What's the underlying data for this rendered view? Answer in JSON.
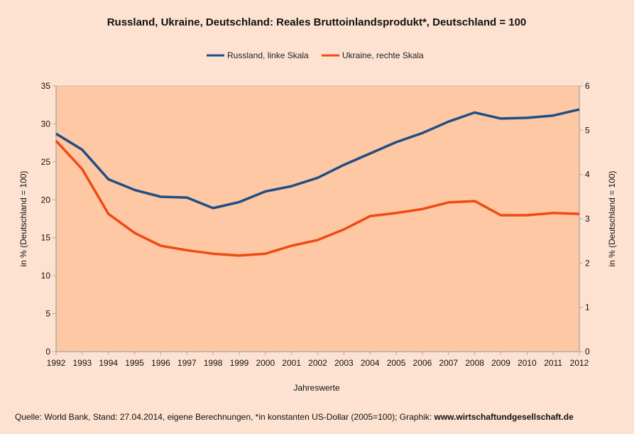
{
  "chart_data": {
    "type": "line",
    "title": "Russland, Ukraine, Deutschland: Reales Bruttoinlandsprodukt*, Deutschland = 100",
    "xlabel": "Jahreswerte",
    "ylabel_left": "in % (Deutschland = 100)",
    "ylabel_right": "in % (Deutschland = 100)",
    "x": [
      "1992",
      "1993",
      "1994",
      "1995",
      "1996",
      "1997",
      "1998",
      "1999",
      "2000",
      "2001",
      "2002",
      "2003",
      "2004",
      "2005",
      "2006",
      "2007",
      "2008",
      "2009",
      "2010",
      "2011",
      "2012"
    ],
    "y_left": {
      "min": 0,
      "max": 35,
      "step": 5,
      "ticks": [
        "0",
        "5",
        "10",
        "15",
        "20",
        "25",
        "30",
        "35"
      ]
    },
    "y_right": {
      "min": 0,
      "max": 6,
      "step": 1,
      "ticks": [
        "0",
        "1",
        "2",
        "3",
        "4",
        "5",
        "6"
      ]
    },
    "grid": false,
    "legend_position": "top-center",
    "series": [
      {
        "name": "Russland, linke Skala",
        "axis": "left",
        "color": "#1f4e85",
        "values": [
          28.7,
          26.6,
          22.7,
          21.3,
          20.4,
          20.3,
          18.9,
          19.7,
          21.1,
          21.8,
          22.9,
          24.6,
          26.1,
          27.6,
          28.8,
          30.3,
          31.5,
          30.7,
          30.8,
          31.1,
          31.9
        ]
      },
      {
        "name": "Ukraine, rechte Skala",
        "axis": "right",
        "color": "#f04a14",
        "values": [
          4.76,
          4.12,
          3.11,
          2.68,
          2.39,
          2.29,
          2.21,
          2.17,
          2.21,
          2.39,
          2.52,
          2.76,
          3.06,
          3.13,
          3.22,
          3.37,
          3.4,
          3.08,
          3.08,
          3.13,
          3.11
        ]
      }
    ],
    "plot_background": "#fec8a4",
    "page_background": "#fde2d1"
  },
  "footer": {
    "source_text": "Quelle: World Bank, Stand: 27.04.2014, eigene Berechnungen, *in konstanten US-Dollar (2005=100); Graphik: ",
    "source_link": "www.wirtschaftundgesellschaft.de"
  }
}
